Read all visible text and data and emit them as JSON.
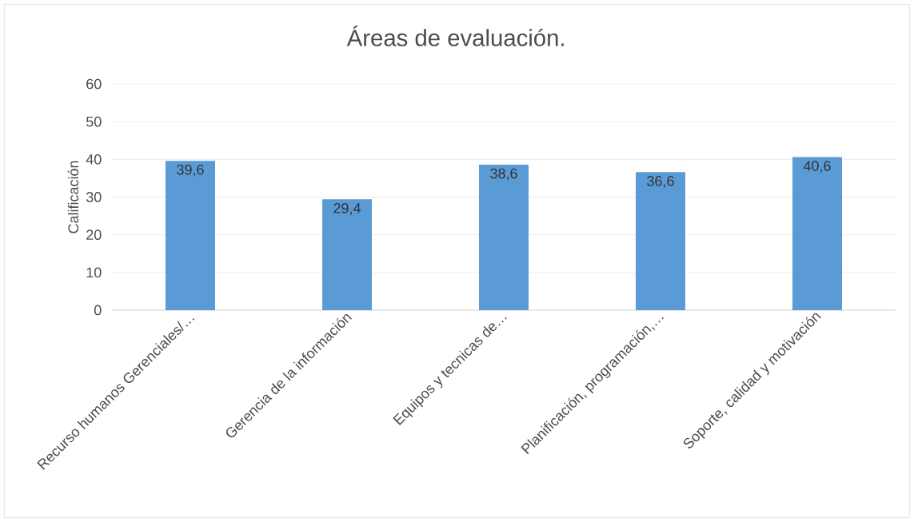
{
  "chart_data": {
    "type": "bar",
    "title": "Áreas de evaluación.",
    "ylabel": "Calificación",
    "categories": [
      "Recurso humanos Gerenciales/…",
      "Gerencia de la información",
      "Equipos y tecnicas de…",
      "Planificación, programación,…",
      "Soporte, calidad y motivación"
    ],
    "values": [
      39.6,
      29.4,
      38.6,
      36.6,
      40.6
    ],
    "value_labels": [
      "39,6",
      "29,4",
      "38,6",
      "36,6",
      "40,6"
    ],
    "color": "#5b9bd5",
    "ylim": [
      0,
      60
    ],
    "yticks": [
      0,
      10,
      20,
      30,
      40,
      50,
      60
    ],
    "grid": "y"
  }
}
